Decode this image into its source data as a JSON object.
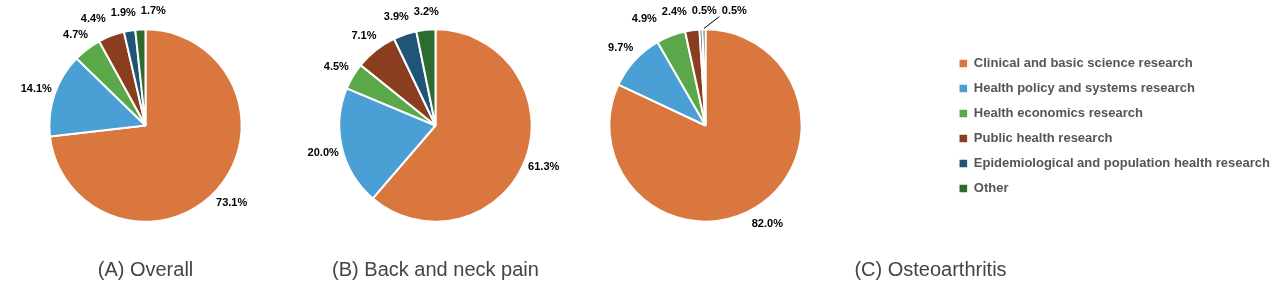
{
  "chart_data": [
    {
      "type": "pie",
      "title": "(A) Overall",
      "categories": [
        null,
        null,
        null,
        null,
        null,
        null
      ],
      "values": [
        73.1,
        14.1,
        4.7,
        4.4,
        1.9,
        1.7
      ],
      "value_labels": [
        "73.1%",
        "14.1%",
        "4.7%",
        "4.4%",
        "1.9%",
        "1.7%"
      ],
      "colors": [
        "#d9773f",
        "#4a9fd4",
        "#5aa84a",
        "#8b3e1f",
        "#1f5577",
        "#2e6b2e"
      ],
      "legend": false
    },
    {
      "type": "pie",
      "title": "(B) Back and neck pain",
      "categories": [
        null,
        null,
        null,
        null,
        null,
        null
      ],
      "values": [
        61.3,
        20.0,
        4.5,
        7.1,
        3.9,
        3.2
      ],
      "value_labels": [
        "61.3%",
        "20.0%",
        "4.5%",
        "7.1%",
        "3.9%",
        "3.2%"
      ],
      "colors": [
        "#d9773f",
        "#4a9fd4",
        "#5aa84a",
        "#8b3e1f",
        "#1f5577",
        "#2e6b2e"
      ],
      "legend": false
    },
    {
      "type": "pie",
      "title": "(C) Osteoarthritis",
      "categories": [
        "Clinical and basic science research",
        "Health policy and systems research",
        "Health economics research",
        "Public health research",
        "Epidemiological and population health research",
        "Other"
      ],
      "values": [
        82.0,
        9.7,
        4.9,
        2.4,
        0.5,
        0.5
      ],
      "value_labels": [
        "82.0%",
        "9.7%",
        "4.9%",
        "2.4%",
        "0.5%",
        "0.5%"
      ],
      "colors": [
        "#d9773f",
        "#4a9fd4",
        "#5aa84a",
        "#8b3e1f",
        "#1f5577",
        "#2e6b2e"
      ],
      "legend": "right"
    }
  ]
}
